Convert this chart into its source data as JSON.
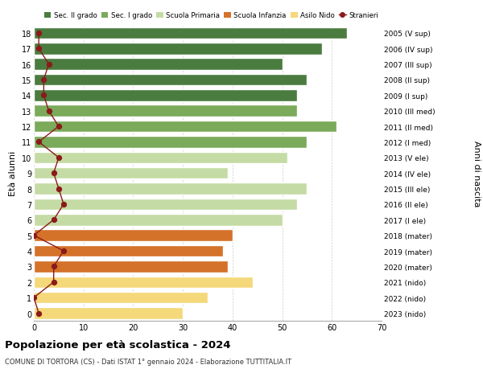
{
  "ages": [
    18,
    17,
    16,
    15,
    14,
    13,
    12,
    11,
    10,
    9,
    8,
    7,
    6,
    5,
    4,
    3,
    2,
    1,
    0
  ],
  "bar_values": [
    63,
    58,
    50,
    55,
    53,
    53,
    61,
    55,
    51,
    39,
    55,
    53,
    50,
    40,
    38,
    39,
    44,
    35,
    30
  ],
  "stranieri_values": [
    1,
    1,
    3,
    2,
    2,
    3,
    5,
    1,
    5,
    4,
    5,
    6,
    4,
    0,
    6,
    4,
    4,
    0,
    1
  ],
  "right_labels": [
    "2005 (V sup)",
    "2006 (IV sup)",
    "2007 (III sup)",
    "2008 (II sup)",
    "2009 (I sup)",
    "2010 (III med)",
    "2011 (II med)",
    "2012 (I med)",
    "2013 (V ele)",
    "2014 (IV ele)",
    "2015 (III ele)",
    "2016 (II ele)",
    "2017 (I ele)",
    "2018 (mater)",
    "2019 (mater)",
    "2020 (mater)",
    "2021 (nido)",
    "2022 (nido)",
    "2023 (nido)"
  ],
  "bar_colors": {
    "sec2": "#4a7c3f",
    "sec1": "#7aaa5a",
    "primaria": "#c5dba5",
    "infanzia": "#d4722a",
    "nido": "#f5d87a"
  },
  "category_ranges": {
    "sec2": [
      14,
      18
    ],
    "sec1": [
      11,
      13
    ],
    "primaria": [
      6,
      10
    ],
    "infanzia": [
      3,
      5
    ],
    "nido": [
      0,
      2
    ]
  },
  "stranieri_color": "#8b1a1a",
  "legend_labels": [
    "Sec. II grado",
    "Sec. I grado",
    "Scuola Primaria",
    "Scuola Infanzia",
    "Asilo Nido",
    "Stranieri"
  ],
  "legend_colors": [
    "#4a7c3f",
    "#7aaa5a",
    "#c5dba5",
    "#d4722a",
    "#f5d87a",
    "#8b1a1a"
  ],
  "ylabel": "Età alunni",
  "right_ylabel": "Anni di nascita",
  "xlim": [
    0,
    70
  ],
  "title": "Popolazione per età scolastica - 2024",
  "subtitle": "COMUNE DI TORTORA (CS) - Dati ISTAT 1° gennaio 2024 - Elaborazione TUTTITALIA.IT",
  "grid_color": "#cccccc",
  "xticks": [
    0,
    10,
    20,
    30,
    40,
    50,
    60,
    70
  ]
}
